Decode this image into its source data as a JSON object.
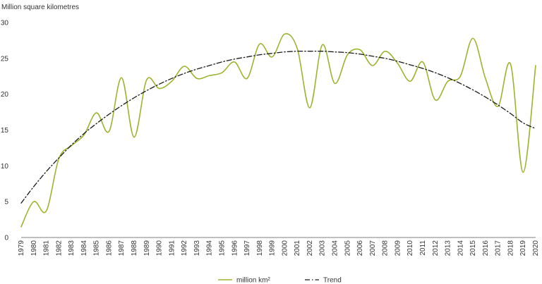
{
  "chart_data": {
    "type": "line",
    "ylabel": "Million square kilometres",
    "xlabel": "",
    "title": "",
    "ylim": [
      0,
      30
    ],
    "yticks": [
      0,
      5,
      10,
      15,
      20,
      25,
      30
    ],
    "grid": false,
    "legend_position": "bottom",
    "x": [
      1979,
      1980,
      1981,
      1982,
      1983,
      1984,
      1985,
      1986,
      1987,
      1988,
      1989,
      1990,
      1991,
      1992,
      1993,
      1994,
      1995,
      1996,
      1997,
      1998,
      1999,
      2000,
      2001,
      2002,
      2003,
      2004,
      2005,
      2006,
      2007,
      2008,
      2009,
      2010,
      2011,
      2012,
      2013,
      2014,
      2015,
      2016,
      2017,
      2018,
      2019,
      2020
    ],
    "x_tick_labels": [
      "1979",
      "1980",
      "1981",
      "1982",
      "1983",
      "1984",
      "1985",
      "1986",
      "1987",
      "1988",
      "1989",
      "1990",
      "1991",
      "1992",
      "1993",
      "1994",
      "1995",
      "1996",
      "1997",
      "1998",
      "1999",
      "2000",
      "2001",
      "2002",
      "2003",
      "2004",
      "2005",
      "2006",
      "2007",
      "2008",
      "2009",
      "2010",
      "2011",
      "2012",
      "2013",
      "2014",
      "2015",
      "2016",
      "2017",
      "2018",
      "2019",
      "2020"
    ],
    "series": [
      {
        "name": "million km²",
        "style": "solid",
        "color": "#9ab52f",
        "values": [
          1.5,
          5.0,
          3.7,
          11.0,
          12.8,
          14.3,
          17.4,
          14.8,
          22.3,
          14.0,
          22.0,
          20.8,
          21.8,
          23.9,
          22.2,
          22.6,
          23.0,
          24.5,
          22.2,
          27.0,
          25.2,
          28.4,
          26.4,
          18.1,
          26.9,
          21.5,
          25.5,
          26.2,
          24.0,
          26.0,
          24.3,
          21.8,
          24.5,
          19.2,
          21.8,
          22.5,
          27.8,
          22.2,
          18.3,
          24.2,
          9.1,
          24.0
        ]
      },
      {
        "name": "Trend",
        "style": "dashdot",
        "color": "#1a1a1a",
        "values": [
          4.8,
          7.1,
          9.2,
          11.1,
          12.9,
          14.5,
          15.9,
          17.2,
          18.4,
          19.5,
          20.5,
          21.4,
          22.2,
          22.9,
          23.5,
          24.0,
          24.5,
          24.9,
          25.2,
          25.5,
          25.7,
          25.9,
          26.0,
          26.0,
          26.0,
          25.9,
          25.8,
          25.6,
          25.3,
          25.0,
          24.6,
          24.1,
          23.6,
          23.0,
          22.3,
          21.5,
          20.6,
          19.6,
          18.5,
          17.3,
          16.0,
          15.2
        ]
      }
    ]
  }
}
